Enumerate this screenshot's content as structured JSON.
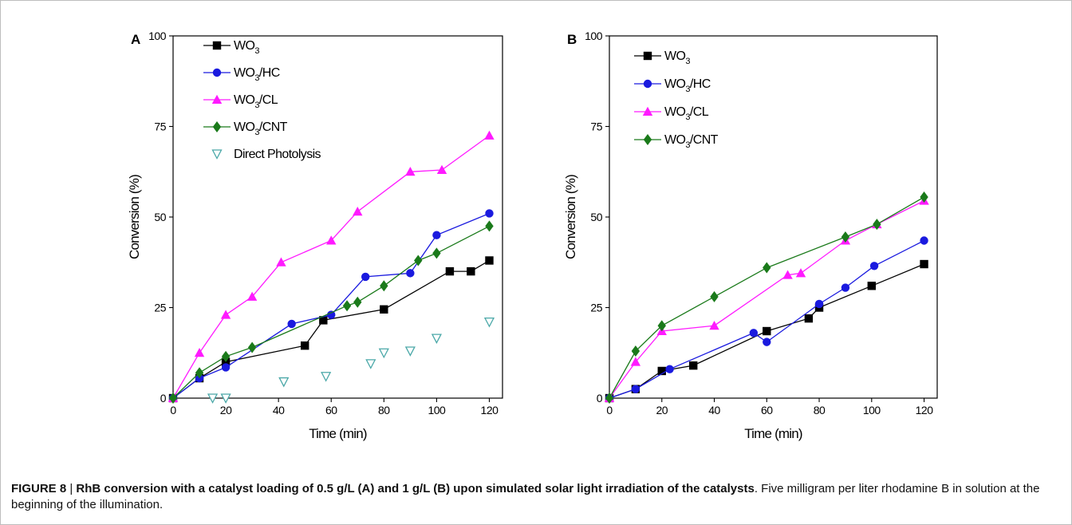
{
  "figure": {
    "caption": {
      "figure_label": "FIGURE 8",
      "separator": " | ",
      "title": "RhB conversion with a catalyst loading of 0.5 g/L (A) and 1 g/L (B) upon simulated solar light irradiation of the catalysts",
      "body": ". Five milligram per liter rhodamine B in solution at the beginning of the illumination."
    }
  },
  "chart_data": [
    {
      "panel_label": "A",
      "type": "line",
      "xlabel": "Time (min)",
      "ylabel": "Conversion (%)",
      "xlim": [
        0,
        125
      ],
      "ylim": [
        0,
        100
      ],
      "xticks": [
        0,
        20,
        40,
        60,
        80,
        100,
        120
      ],
      "yticks": [
        0,
        25,
        50,
        75,
        100
      ],
      "grid": false,
      "legend_position": "top-left",
      "series": [
        {
          "name": "WO3",
          "color": "#000000",
          "marker": "square",
          "line": true,
          "x": [
            0,
            10,
            20,
            50,
            57,
            80,
            105,
            113,
            120
          ],
          "y": [
            0,
            5.5,
            10,
            14.5,
            21.5,
            24.5,
            35,
            35,
            38
          ]
        },
        {
          "name": "WO3/HC",
          "color": "#1a1adf",
          "marker": "circle",
          "line": true,
          "x": [
            0,
            10,
            20,
            45,
            60,
            73,
            90,
            100,
            120
          ],
          "y": [
            0,
            5.5,
            8.5,
            20.5,
            23,
            33.5,
            34.5,
            45,
            51
          ]
        },
        {
          "name": "WO3/CL",
          "color": "#ff1aff",
          "marker": "triangle-up",
          "line": true,
          "x": [
            0,
            10,
            20,
            30,
            41,
            60,
            70,
            90,
            102,
            120
          ],
          "y": [
            0,
            12.5,
            23,
            28,
            37.5,
            43.5,
            51.5,
            62.5,
            63,
            72.5
          ]
        },
        {
          "name": "WO3/CNT",
          "color": "#1a7a1a",
          "marker": "diamond",
          "line": true,
          "x": [
            0,
            10,
            20,
            30,
            66,
            70,
            80,
            93,
            100,
            120
          ],
          "y": [
            0,
            7,
            11.5,
            14,
            25.5,
            26.5,
            31,
            38,
            40,
            47.5
          ]
        },
        {
          "name": "Direct Photolysis",
          "color": "#4aa8a8",
          "marker": "triangle-down-open",
          "line": false,
          "x": [
            15,
            20,
            42,
            58,
            75,
            80,
            90,
            100,
            120
          ],
          "y": [
            0,
            0,
            4.5,
            6,
            9.5,
            12.5,
            13,
            16.5,
            21
          ]
        }
      ]
    },
    {
      "panel_label": "B",
      "type": "line",
      "xlabel": "Time (min)",
      "ylabel": "Conversion (%)",
      "xlim": [
        0,
        125
      ],
      "ylim": [
        0,
        100
      ],
      "xticks": [
        0,
        20,
        40,
        60,
        80,
        100,
        120
      ],
      "yticks": [
        0,
        25,
        50,
        75,
        100
      ],
      "grid": false,
      "legend_position": "top-left",
      "series": [
        {
          "name": "WO3",
          "color": "#000000",
          "marker": "square",
          "line": true,
          "x": [
            0,
            10,
            20,
            32,
            60,
            76,
            80,
            100,
            120
          ],
          "y": [
            0,
            2.5,
            7.5,
            9,
            18.5,
            22,
            25,
            31,
            37
          ]
        },
        {
          "name": "WO3/HC",
          "color": "#1a1adf",
          "marker": "circle",
          "line": true,
          "x": [
            0,
            10,
            23,
            55,
            60,
            80,
            90,
            101,
            120
          ],
          "y": [
            0,
            2.5,
            8,
            18,
            15.5,
            26,
            30.5,
            36.5,
            43.5
          ]
        },
        {
          "name": "WO3/CL",
          "color": "#ff1aff",
          "marker": "triangle-up",
          "line": true,
          "x": [
            0,
            10,
            20,
            40,
            68,
            73,
            90,
            102,
            120
          ],
          "y": [
            0,
            10,
            18.5,
            20,
            34,
            34.5,
            43.5,
            48,
            54.5
          ]
        },
        {
          "name": "WO3/CNT",
          "color": "#1a7a1a",
          "marker": "diamond",
          "line": true,
          "x": [
            0,
            10,
            20,
            40,
            60,
            90,
            102,
            120
          ],
          "y": [
            0,
            13,
            20,
            28,
            36,
            44.5,
            48,
            55.5
          ]
        }
      ]
    }
  ]
}
